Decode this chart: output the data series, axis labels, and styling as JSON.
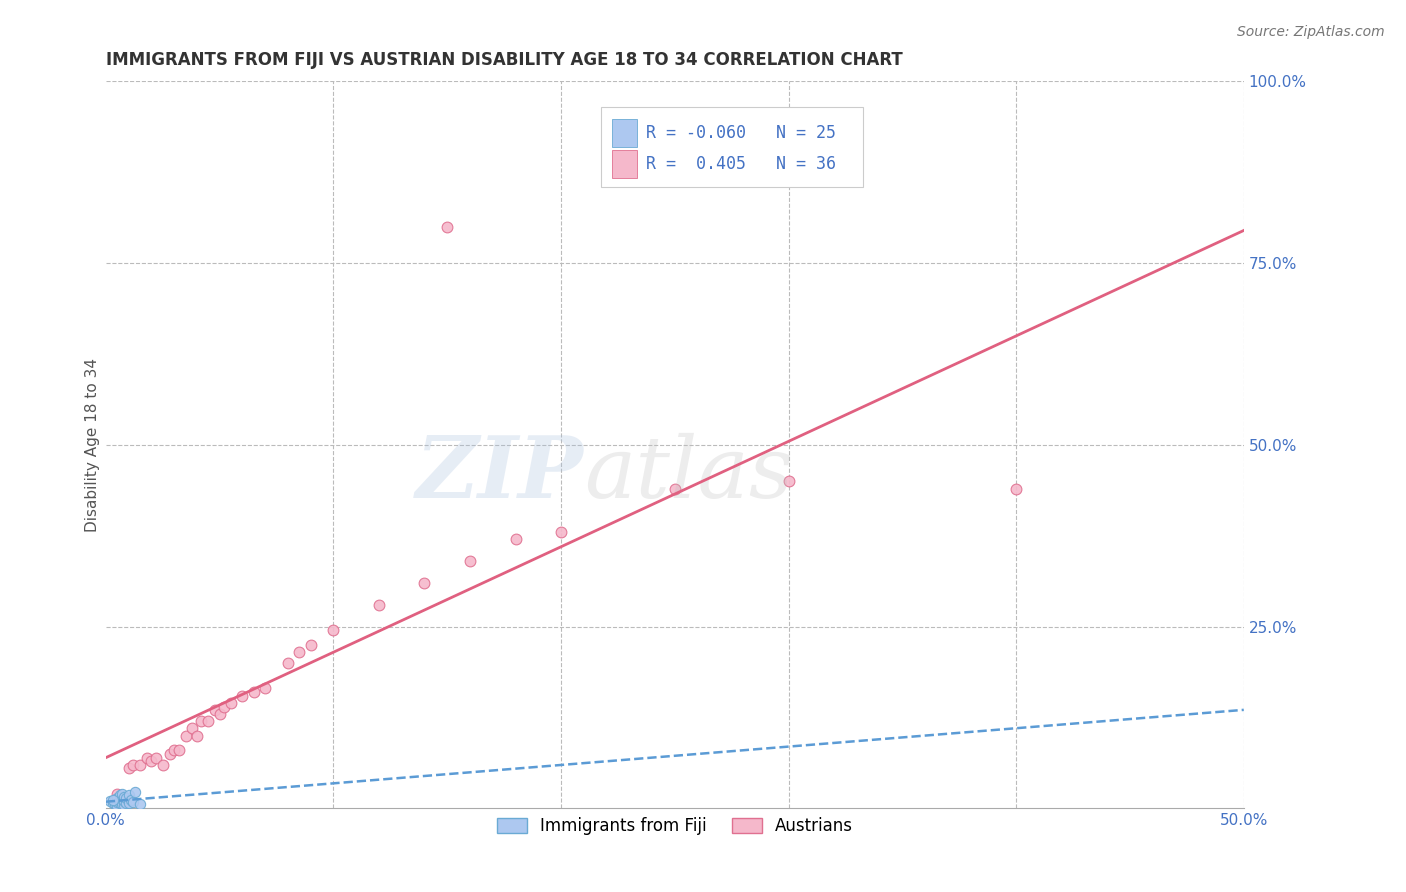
{
  "title": "IMMIGRANTS FROM FIJI VS AUSTRIAN DISABILITY AGE 18 TO 34 CORRELATION CHART",
  "source_text": "Source: ZipAtlas.com",
  "ylabel": "Disability Age 18 to 34",
  "xlim": [
    0.0,
    0.5
  ],
  "ylim": [
    0.0,
    1.0
  ],
  "fiji_R": -0.06,
  "fiji_N": 25,
  "austrian_R": 0.405,
  "austrian_N": 36,
  "fiji_color": "#adc8f0",
  "fiji_edge_color": "#6aaad4",
  "fiji_line_color": "#5b9bd5",
  "austrian_color": "#f5b8cb",
  "austrian_edge_color": "#e07090",
  "austrian_line_color": "#e06080",
  "background_color": "#ffffff",
  "grid_color": "#bbbbbb",
  "tick_color": "#4472c4",
  "title_color": "#333333",
  "ylabel_color": "#555555",
  "source_color": "#777777",
  "fiji_points_x": [
    0.002,
    0.003,
    0.004,
    0.004,
    0.005,
    0.005,
    0.005,
    0.006,
    0.006,
    0.006,
    0.007,
    0.007,
    0.007,
    0.008,
    0.008,
    0.008,
    0.009,
    0.009,
    0.01,
    0.01,
    0.011,
    0.012,
    0.013,
    0.015,
    0.003
  ],
  "fiji_points_y": [
    0.01,
    0.008,
    0.006,
    0.012,
    0.004,
    0.009,
    0.015,
    0.007,
    0.011,
    0.018,
    0.006,
    0.013,
    0.02,
    0.005,
    0.01,
    0.016,
    0.008,
    0.014,
    0.007,
    0.019,
    0.012,
    0.009,
    0.022,
    0.006,
    0.011
  ],
  "austrian_points_x": [
    0.005,
    0.01,
    0.012,
    0.015,
    0.018,
    0.02,
    0.022,
    0.025,
    0.028,
    0.03,
    0.032,
    0.035,
    0.038,
    0.04,
    0.042,
    0.045,
    0.048,
    0.05,
    0.052,
    0.055,
    0.06,
    0.065,
    0.07,
    0.08,
    0.085,
    0.09,
    0.1,
    0.12,
    0.14,
    0.16,
    0.18,
    0.2,
    0.25,
    0.3,
    0.15,
    0.4
  ],
  "austrian_points_y": [
    0.02,
    0.055,
    0.06,
    0.06,
    0.07,
    0.065,
    0.07,
    0.06,
    0.075,
    0.08,
    0.08,
    0.1,
    0.11,
    0.1,
    0.12,
    0.12,
    0.135,
    0.13,
    0.14,
    0.145,
    0.155,
    0.16,
    0.165,
    0.2,
    0.215,
    0.225,
    0.245,
    0.28,
    0.31,
    0.34,
    0.37,
    0.38,
    0.44,
    0.45,
    0.8,
    0.44
  ],
  "title_fontsize": 12,
  "label_fontsize": 11,
  "tick_fontsize": 11,
  "legend_fontsize": 12,
  "source_fontsize": 10
}
